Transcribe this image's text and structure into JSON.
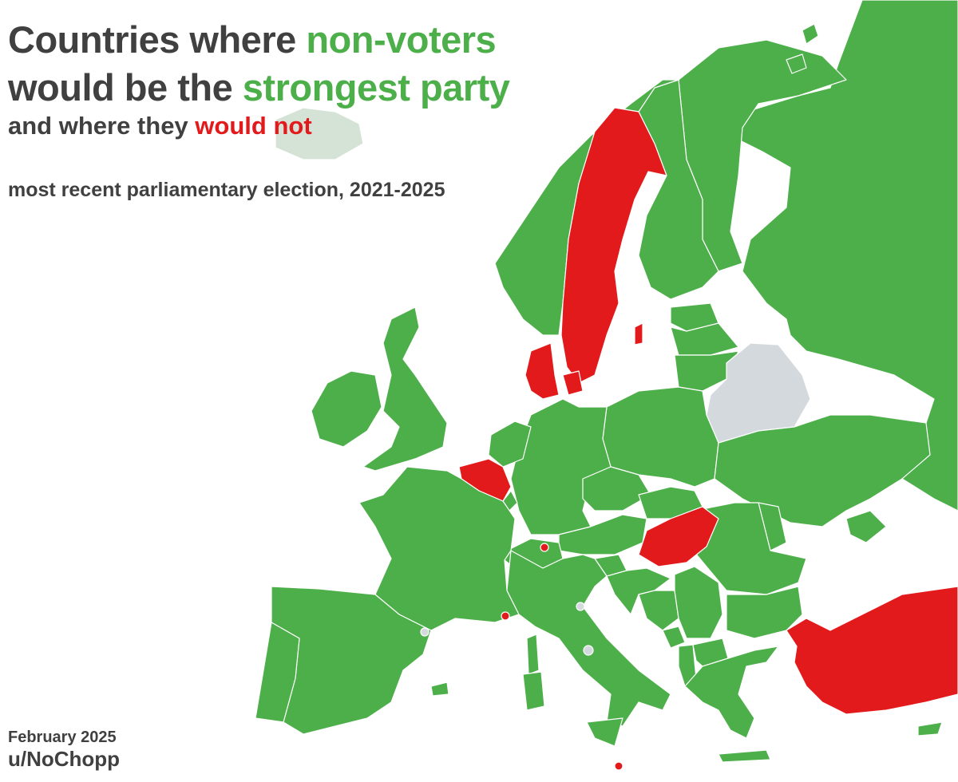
{
  "title": {
    "line1_prefix": "Countries where ",
    "line1_highlight": "non-voters",
    "line2_prefix": "would be the ",
    "line2_highlight": "strongest party",
    "line3_prefix": "and where they ",
    "line3_highlight": "would not"
  },
  "subtitle": "most recent parliamentary election, 2021-2025",
  "footer": {
    "date": "February 2025",
    "author": "u/NoChopp"
  },
  "colors": {
    "non_voters_strongest": "#4daf4a",
    "non_voters_not_strongest": "#e31a1c",
    "no_data": "#d3d9dc",
    "iceland_faded": "#d5e3d6",
    "text": "#404040"
  },
  "legend": [
    {
      "text": "non-voters would be the strongest party",
      "color": "#4daf4a"
    },
    {
      "text": "non-voters would not",
      "color": "#e31a1c"
    }
  ],
  "map": {
    "green_countries": [
      "Russia",
      "Finland",
      "Norway",
      "Estonia",
      "Latvia",
      "Lithuania",
      "Poland",
      "Ukraine",
      "Moldova",
      "Romania",
      "Bulgaria",
      "Germany",
      "Netherlands",
      "Luxembourg",
      "France",
      "Spain",
      "Portugal",
      "Italy",
      "Austria",
      "Czechia",
      "Slovakia",
      "Slovenia",
      "Croatia",
      "Bosnia and Herzegovina",
      "Serbia",
      "Montenegro",
      "Albania",
      "North Macedonia",
      "Greece",
      "United Kingdom",
      "Ireland",
      "Cyprus"
    ],
    "red_countries": [
      "Sweden",
      "Denmark",
      "Belgium",
      "Hungary",
      "Turkey",
      "Liechtenstein",
      "Monaco",
      "Malta"
    ],
    "grey_countries": [
      "Belarus",
      "San Marino",
      "Vatican City",
      "Andorra"
    ]
  }
}
